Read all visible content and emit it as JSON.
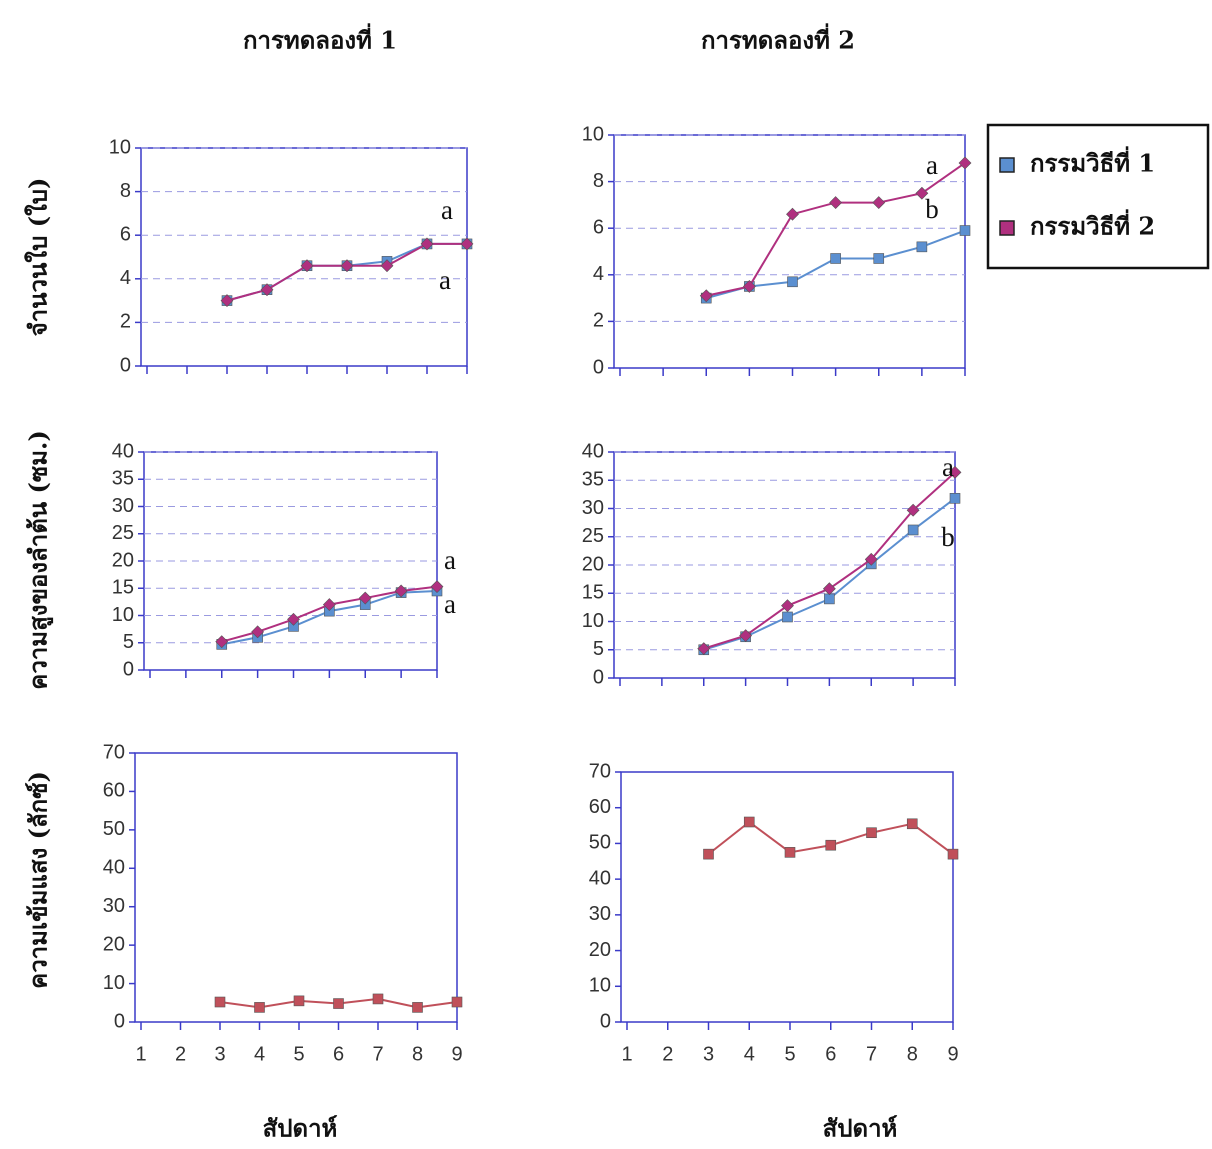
{
  "chart_data": [
    {
      "type": "line",
      "title": "การทดลองที่ 1",
      "y_label": "จำนวนใบ (ใบ)",
      "x": [
        3,
        4,
        5,
        6,
        7,
        8,
        9
      ],
      "xlim": [
        1,
        9
      ],
      "xticks": [
        1,
        2,
        3,
        4,
        5,
        6,
        7,
        8,
        9
      ],
      "xtick_labels": false,
      "ylim": [
        0,
        10
      ],
      "yticks": [
        0,
        2,
        4,
        6,
        8,
        10
      ],
      "grid": true,
      "series": [
        {
          "color": "#5b8fd0",
          "marker": "square",
          "values": [
            3,
            3.5,
            4.6,
            4.6,
            4.8,
            5.6,
            5.6
          ]
        },
        {
          "color": "#b0307f",
          "marker": "diamond",
          "values": [
            3,
            3.5,
            4.6,
            4.6,
            4.6,
            5.6,
            5.6
          ]
        }
      ],
      "annotations": [
        "a",
        "a"
      ]
    },
    {
      "type": "line",
      "title": "การทดลองที่ 2",
      "x": [
        3,
        4,
        5,
        6,
        7,
        8,
        9
      ],
      "xlim": [
        1,
        9
      ],
      "xticks": [
        1,
        2,
        3,
        4,
        5,
        6,
        7,
        8,
        9
      ],
      "xtick_labels": false,
      "ylim": [
        0,
        10
      ],
      "yticks": [
        0,
        2,
        4,
        6,
        8,
        10
      ],
      "grid": true,
      "legend": "right",
      "series": [
        {
          "name": "กรรมวิธีที่ 1",
          "color": "#5b8fd0",
          "marker": "square",
          "values": [
            3,
            3.5,
            3.7,
            4.7,
            4.7,
            5.2,
            5.9
          ]
        },
        {
          "name": "กรรมวิธีที่ 2",
          "color": "#b0307f",
          "marker": "diamond",
          "values": [
            3.1,
            3.5,
            6.6,
            7.1,
            7.1,
            7.5,
            8.8
          ]
        }
      ],
      "annotations": [
        "a",
        "b"
      ]
    },
    {
      "type": "line",
      "y_label": "ความสูงของลำต้น (ซม.)",
      "x": [
        3,
        4,
        5,
        6,
        7,
        8,
        9
      ],
      "xlim": [
        1,
        9
      ],
      "xticks": [
        1,
        2,
        3,
        4,
        5,
        6,
        7,
        8,
        9
      ],
      "xtick_labels": false,
      "ylim": [
        0,
        40
      ],
      "yticks": [
        0,
        5,
        10,
        15,
        20,
        25,
        30,
        35,
        40
      ],
      "grid": true,
      "series": [
        {
          "color": "#5b8fd0",
          "marker": "square",
          "values": [
            4.7,
            6,
            8,
            10.8,
            12,
            14.2,
            14.5
          ]
        },
        {
          "color": "#b0307f",
          "marker": "diamond",
          "values": [
            5.2,
            7,
            9.3,
            12,
            13.2,
            14.5,
            15.3
          ]
        }
      ],
      "annotations": [
        "a",
        "a"
      ]
    },
    {
      "type": "line",
      "x": [
        3,
        4,
        5,
        6,
        7,
        8,
        9
      ],
      "xlim": [
        1,
        9
      ],
      "xticks": [
        1,
        2,
        3,
        4,
        5,
        6,
        7,
        8,
        9
      ],
      "xtick_labels": false,
      "ylim": [
        0,
        40
      ],
      "yticks": [
        0,
        5,
        10,
        15,
        20,
        25,
        30,
        35,
        40
      ],
      "grid": true,
      "series": [
        {
          "color": "#5b8fd0",
          "marker": "square",
          "values": [
            5,
            7.3,
            10.8,
            14,
            20.2,
            26.2,
            31.8
          ]
        },
        {
          "color": "#b0307f",
          "marker": "diamond",
          "values": [
            5.2,
            7.5,
            12.8,
            15.8,
            21,
            29.7,
            36.4
          ]
        }
      ],
      "annotations": [
        "a",
        "b"
      ]
    },
    {
      "type": "line",
      "y_label": "ความเข้มแสง (ลักซ์)",
      "x_label": "สัปดาห์",
      "x": [
        3,
        4,
        5,
        6,
        7,
        8,
        9
      ],
      "xlim": [
        1,
        9
      ],
      "xticks": [
        1,
        2,
        3,
        4,
        5,
        6,
        7,
        8,
        9
      ],
      "xtick_labels": true,
      "ylim": [
        0,
        70
      ],
      "yticks": [
        0,
        10,
        20,
        30,
        40,
        50,
        60,
        70
      ],
      "grid": false,
      "series": [
        {
          "color": "#c0505a",
          "marker": "square",
          "values": [
            5.2,
            3.8,
            5.5,
            4.8,
            6,
            3.8,
            5.2
          ]
        }
      ]
    },
    {
      "type": "line",
      "x_label": "สัปดาห์",
      "x": [
        3,
        4,
        5,
        6,
        7,
        8,
        9
      ],
      "xlim": [
        1,
        9
      ],
      "xticks": [
        1,
        2,
        3,
        4,
        5,
        6,
        7,
        8,
        9
      ],
      "xtick_labels": true,
      "ylim": [
        0,
        70
      ],
      "yticks": [
        0,
        10,
        20,
        30,
        40,
        50,
        60,
        70
      ],
      "grid": false,
      "series": [
        {
          "color": "#c0505a",
          "marker": "square",
          "values": [
            47,
            56,
            47.5,
            49.5,
            53,
            55.5,
            47
          ]
        }
      ]
    }
  ]
}
